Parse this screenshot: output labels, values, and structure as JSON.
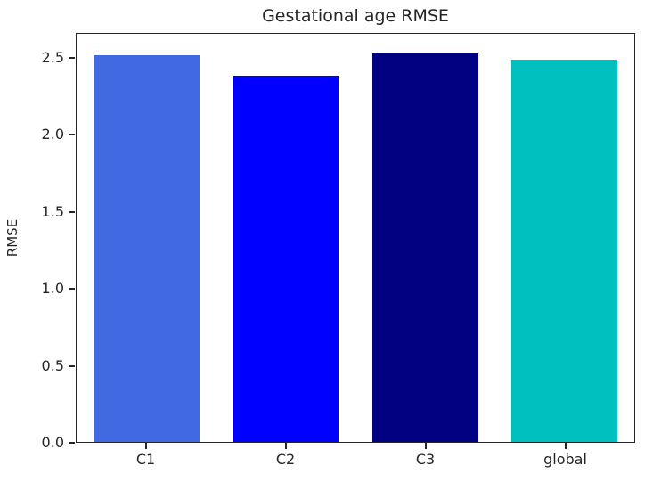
{
  "figure": {
    "title": "Gestational age RMSE",
    "ylabel": "RMSE"
  },
  "chart_data": {
    "type": "bar",
    "title": "Gestational age RMSE",
    "xlabel": "",
    "ylabel": "RMSE",
    "categories": [
      "C1",
      "C2",
      "C3",
      "global"
    ],
    "values": [
      2.52,
      2.39,
      2.53,
      2.49
    ],
    "bar_colors": [
      "#4169e1",
      "#0000ff",
      "#000080",
      "#00bfbf"
    ],
    "ylim": [
      0,
      2.66
    ],
    "yticks": [
      0.0,
      0.5,
      1.0,
      1.5,
      2.0,
      2.5
    ],
    "ytick_labels": [
      "0.0",
      "0.5",
      "1.0",
      "1.5",
      "2.0",
      "2.5"
    ],
    "grid": false,
    "legend": "none",
    "background_color": "#ffffff",
    "spine_color": "#262626"
  }
}
